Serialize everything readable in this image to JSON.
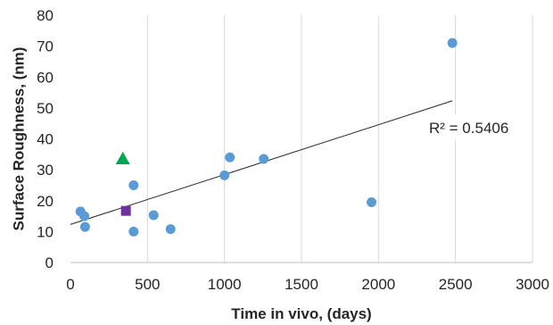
{
  "chart_data": {
    "type": "scatter",
    "xlabel": "Time in vivo, (days)",
    "ylabel": "Surface Roughness, (nm)",
    "xlim": [
      0,
      3000
    ],
    "ylim": [
      0,
      80
    ],
    "xticks": [
      0,
      500,
      1000,
      1500,
      2000,
      2500,
      3000
    ],
    "yticks": [
      0,
      10,
      20,
      30,
      40,
      50,
      60,
      70,
      80
    ],
    "grid": "vertical",
    "series": [
      {
        "marker": "circle",
        "color": "#5b9bd5",
        "points": [
          {
            "x": 65,
            "y": 16.5
          },
          {
            "x": 90,
            "y": 15
          },
          {
            "x": 95,
            "y": 11.5
          },
          {
            "x": 410,
            "y": 25
          },
          {
            "x": 410,
            "y": 10
          },
          {
            "x": 540,
            "y": 15.3
          },
          {
            "x": 650,
            "y": 10.8
          },
          {
            "x": 1000,
            "y": 28.2
          },
          {
            "x": 1035,
            "y": 34
          },
          {
            "x": 1255,
            "y": 33.5
          },
          {
            "x": 1955,
            "y": 19.5
          },
          {
            "x": 2480,
            "y": 71
          }
        ]
      },
      {
        "marker": "triangle",
        "color": "#00a651",
        "points": [
          {
            "x": 340,
            "y": 33.5
          }
        ]
      },
      {
        "marker": "square",
        "color": "#7030a0",
        "points": [
          {
            "x": 360,
            "y": 16.7
          }
        ]
      }
    ],
    "trendline": {
      "type": "linear",
      "x": [
        0,
        2480
      ],
      "y": [
        12.3,
        52.3
      ],
      "color": "#262626",
      "label": "R² = 0.5406"
    }
  }
}
